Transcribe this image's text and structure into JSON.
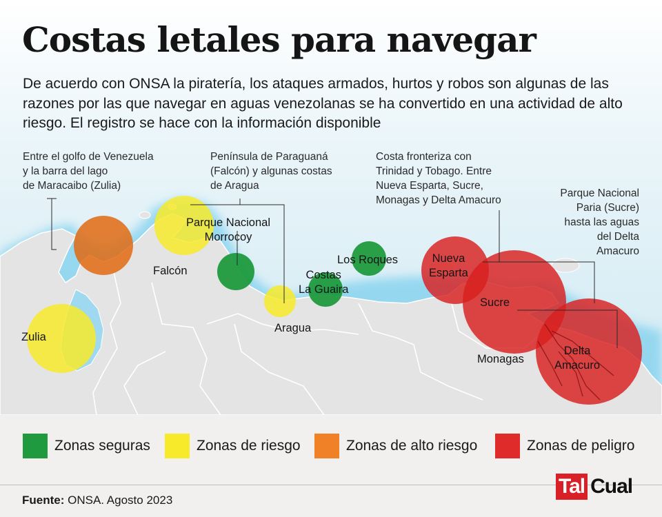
{
  "title": "Costas letales para navegar",
  "intro": "De acuerdo con ONSA la piratería, los ataques armados, hurtos y robos son algunas de las razones por las que navegar en aguas venezolanas se ha convertido en una actividad de alto riesgo. El registro se hace con la información disponible",
  "annotations": {
    "zulia": [
      "Entre el golfo de Venezuela",
      "y la barra del lago",
      "de Maracaibo (Zulia)"
    ],
    "paraguana": [
      "Península de Paraguaná",
      "(Falcón) y algunas costas",
      "de Aragua"
    ],
    "trinidad": [
      "Costa fronteriza con",
      "Trinidad y Tobago. Entre",
      "Nueva Esparta,  Sucre,",
      "Monagas y Delta Amacuro"
    ],
    "paria": [
      "Parque Nacional",
      "Paria (Sucre)",
      "hasta las aguas",
      "del Delta",
      "Amacuro"
    ]
  },
  "places": {
    "zulia": "Zulia",
    "falcon": "Falcón",
    "morrocoy": [
      "Parque Nacional",
      "Morrocoy"
    ],
    "aragua": "Aragua",
    "laguaira": [
      "Costas",
      "La Guaira"
    ],
    "losroques": "Los Roques",
    "nuevaesparta": [
      "Nueva",
      "Esparta"
    ],
    "sucre": "Sucre",
    "monagas": "Monagas",
    "delta": [
      "Delta",
      "Amacuro"
    ]
  },
  "zones": [
    {
      "place": "Golfo de Venezuela / barra del lago de Maracaibo",
      "level": "alto"
    },
    {
      "place": "Zulia",
      "level": "riesgo"
    },
    {
      "place": "Península de Paraguaná",
      "level": "riesgo"
    },
    {
      "place": "Parque Nacional Morrocoy",
      "level": "seguro"
    },
    {
      "place": "Aragua",
      "level": "riesgo"
    },
    {
      "place": "Costas La Guaira",
      "level": "seguro"
    },
    {
      "place": "Los Roques",
      "level": "seguro"
    },
    {
      "place": "Nueva Esparta",
      "level": "peligro"
    },
    {
      "place": "Sucre",
      "level": "peligro"
    },
    {
      "place": "Delta Amacuro",
      "level": "peligro"
    }
  ],
  "legend": [
    {
      "key": "seguro",
      "label": "Zonas seguras",
      "color": "#1f9a3e"
    },
    {
      "key": "riesgo",
      "label": "Zonas de riesgo",
      "color": "#f7ea2b"
    },
    {
      "key": "alto",
      "label": "Zonas de alto riesgo",
      "color": "#f08126"
    },
    {
      "key": "peligro",
      "label": "Zonas de peligro",
      "color": "#e02b2b"
    }
  ],
  "colors": {
    "sea": "#d9eef5",
    "coast_glow": "#7fd0ee",
    "land": "#e4e4e4",
    "border": "#ffffff"
  },
  "footer": {
    "source_label": "Fuente:",
    "source_text": "ONSA. Agosto 2023"
  },
  "logo": {
    "part1": "Tal",
    "part2": "Cual"
  }
}
